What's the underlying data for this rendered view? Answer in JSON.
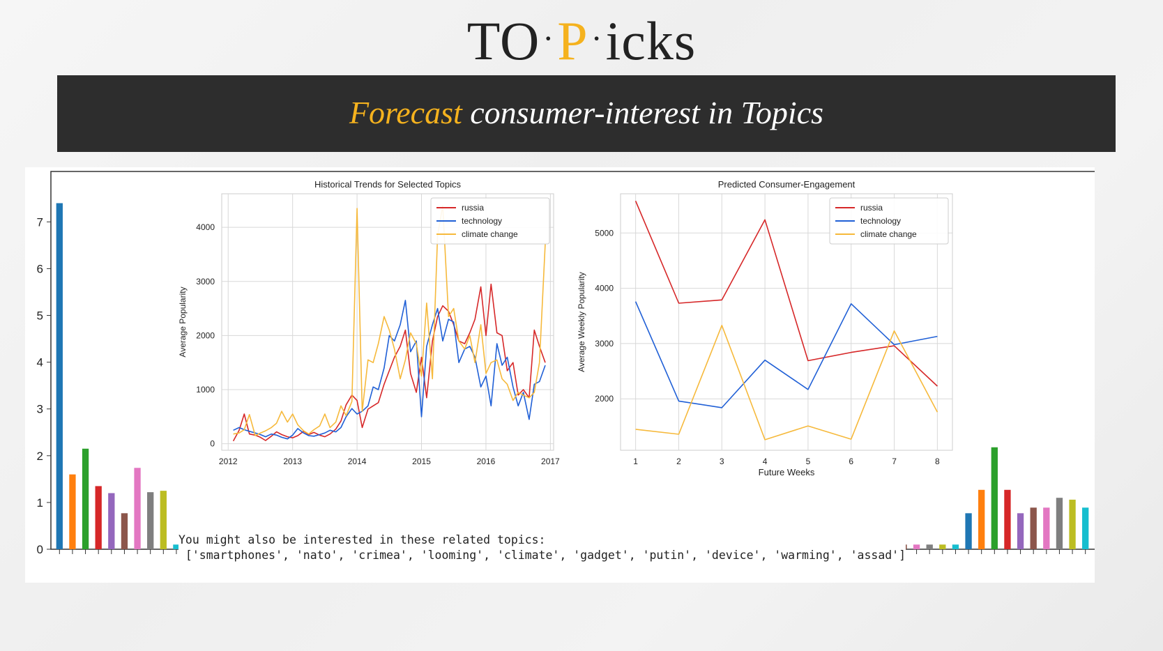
{
  "header": {
    "logo_part1": "TO",
    "logo_dot": "·",
    "logo_accent": "P",
    "logo_part2": "icks",
    "banner_accent": "Forecast",
    "banner_rest": " consumer-interest in Topics"
  },
  "related": {
    "line1": "You might also be interested in these related topics:",
    "line2": " ['smartphones', 'nato', 'crimea', 'looming', 'climate', 'gadget', 'putin', 'device', 'warming', 'assad']"
  },
  "colors": {
    "russia": "#d62728",
    "technology": "#1f5fd6",
    "climate_change": "#f6b93b",
    "tab10": [
      "#1f77b4",
      "#ff7f0e",
      "#2ca02c",
      "#d62728",
      "#9467bd",
      "#8c564b",
      "#e377c2",
      "#7f7f7f",
      "#bcbd22",
      "#17becf"
    ]
  },
  "chart_data": [
    {
      "type": "bar",
      "title": "",
      "ylim": [
        0,
        7.75
      ],
      "yticks": [
        0,
        1,
        2,
        3,
        4,
        5,
        6,
        7
      ],
      "values": [
        7.4,
        1.6,
        2.15,
        1.35,
        1.2,
        0.77,
        1.74,
        1.22,
        1.25,
        0.1,
        0.1,
        0.1,
        0.1,
        0.1,
        0.1,
        0.1,
        0.1,
        0.1,
        0.1,
        0.1,
        0.1,
        0.1,
        0.1,
        0.1,
        0.1,
        0.1,
        0.1,
        0.1,
        0.1,
        0.1,
        0.1,
        0.1,
        0.1,
        0.1,
        0.1,
        0.1,
        0.1,
        0.1,
        0.1,
        0.1,
        0.1,
        0.1,
        0.1,
        0.1,
        0.1,
        0.1,
        0.1,
        0.1,
        0.1,
        0.1,
        0.1,
        0.1,
        0.1,
        0.1,
        0.1,
        0.1,
        0.1,
        0.1,
        0.1,
        0.1,
        0.1,
        0.1,
        0.1,
        0.1,
        0.1,
        0.1,
        0.1,
        0.1,
        0.1,
        0.1,
        0.77,
        1.27,
        2.18,
        1.27,
        0.77,
        0.89,
        0.89,
        1.1,
        1.06,
        0.89
      ]
    },
    {
      "type": "line",
      "title": "Historical Trends for Selected Topics",
      "xlabel": "",
      "ylabel": "Average Popularity",
      "xlim": [
        2011.9,
        2017.05
      ],
      "ylim": [
        -120,
        4620
      ],
      "xticks": [
        2012,
        2013,
        2014,
        2015,
        2016,
        2017
      ],
      "yticks": [
        0,
        1000,
        2000,
        3000,
        4000
      ],
      "legend_position": "top-right",
      "grid": true,
      "series": [
        {
          "name": "russia",
          "color_key": "russia",
          "x": [
            2012.08,
            2012.17,
            2012.25,
            2012.33,
            2012.42,
            2012.5,
            2012.58,
            2012.67,
            2012.75,
            2012.83,
            2012.92,
            2013.0,
            2013.08,
            2013.17,
            2013.25,
            2013.33,
            2013.42,
            2013.5,
            2013.58,
            2013.67,
            2013.75,
            2013.83,
            2013.92,
            2014.0,
            2014.08,
            2014.17,
            2014.25,
            2014.33,
            2014.42,
            2014.5,
            2014.58,
            2014.67,
            2014.75,
            2014.83,
            2014.92,
            2015.0,
            2015.08,
            2015.17,
            2015.25,
            2015.33,
            2015.42,
            2015.5,
            2015.58,
            2015.67,
            2015.75,
            2015.83,
            2015.92,
            2016.0,
            2016.08,
            2016.17,
            2016.25,
            2016.33,
            2016.42,
            2016.5,
            2016.58,
            2016.67,
            2016.75,
            2016.83,
            2016.92
          ],
          "y": [
            50,
            250,
            550,
            180,
            160,
            120,
            60,
            140,
            220,
            170,
            130,
            110,
            150,
            230,
            170,
            210,
            160,
            130,
            180,
            270,
            420,
            720,
            900,
            800,
            300,
            640,
            700,
            760,
            1100,
            1350,
            1600,
            1800,
            2100,
            1300,
            950,
            1600,
            850,
            1900,
            2350,
            2550,
            2450,
            2200,
            1900,
            1850,
            2050,
            2300,
            2900,
            2000,
            2950,
            2050,
            2000,
            1350,
            1500,
            900,
            1000,
            850,
            2100,
            1800,
            1500
          ]
        },
        {
          "name": "technology",
          "color_key": "technology",
          "x": [
            2012.08,
            2012.17,
            2012.25,
            2012.33,
            2012.42,
            2012.5,
            2012.58,
            2012.67,
            2012.75,
            2012.83,
            2012.92,
            2013.0,
            2013.08,
            2013.17,
            2013.25,
            2013.33,
            2013.42,
            2013.5,
            2013.58,
            2013.67,
            2013.75,
            2013.83,
            2013.92,
            2014.0,
            2014.08,
            2014.17,
            2014.25,
            2014.33,
            2014.42,
            2014.5,
            2014.58,
            2014.67,
            2014.75,
            2014.83,
            2014.92,
            2015.0,
            2015.08,
            2015.17,
            2015.25,
            2015.33,
            2015.42,
            2015.5,
            2015.58,
            2015.67,
            2015.75,
            2015.83,
            2015.92,
            2016.0,
            2016.08,
            2016.17,
            2016.25,
            2016.33,
            2016.42,
            2016.5,
            2016.58,
            2016.67,
            2016.75,
            2016.83,
            2016.92
          ],
          "y": [
            250,
            300,
            260,
            230,
            200,
            170,
            130,
            180,
            160,
            120,
            90,
            160,
            280,
            200,
            150,
            140,
            170,
            200,
            250,
            220,
            300,
            500,
            650,
            550,
            600,
            700,
            1050,
            1000,
            1400,
            2000,
            1900,
            2200,
            2650,
            1700,
            1900,
            500,
            1800,
            2200,
            2500,
            1900,
            2300,
            2250,
            1500,
            1750,
            1800,
            1600,
            1050,
            1250,
            700,
            1850,
            1450,
            1600,
            1050,
            700,
            950,
            450,
            1100,
            1150,
            1450
          ]
        },
        {
          "name": "climate change",
          "color_key": "climate_change",
          "x": [
            2012.08,
            2012.17,
            2012.25,
            2012.33,
            2012.42,
            2012.5,
            2012.58,
            2012.67,
            2012.75,
            2012.83,
            2012.92,
            2013.0,
            2013.08,
            2013.17,
            2013.25,
            2013.33,
            2013.42,
            2013.5,
            2013.58,
            2013.67,
            2013.75,
            2013.83,
            2013.92,
            2014.0,
            2014.08,
            2014.17,
            2014.25,
            2014.33,
            2014.42,
            2014.5,
            2014.58,
            2014.67,
            2014.75,
            2014.83,
            2014.92,
            2015.0,
            2015.08,
            2015.17,
            2015.25,
            2015.33,
            2015.42,
            2015.5,
            2015.58,
            2015.67,
            2015.75,
            2015.83,
            2015.92,
            2016.0,
            2016.08,
            2016.17,
            2016.25,
            2016.33,
            2016.42,
            2016.5,
            2016.58,
            2016.67,
            2016.75,
            2016.83,
            2016.92
          ],
          "y": [
            180,
            200,
            260,
            540,
            150,
            200,
            240,
            300,
            380,
            600,
            400,
            550,
            350,
            240,
            180,
            260,
            330,
            550,
            300,
            400,
            700,
            520,
            780,
            4350,
            600,
            1550,
            1500,
            1850,
            2350,
            2100,
            1750,
            1200,
            1550,
            2050,
            1850,
            1250,
            2600,
            1200,
            3850,
            4400,
            2350,
            2500,
            1900,
            1750,
            2000,
            1500,
            2200,
            1300,
            1500,
            1550,
            1200,
            1100,
            800,
            950,
            900,
            850,
            950,
            1500,
            3700
          ]
        }
      ]
    },
    {
      "type": "line",
      "title": "Predicted Consumer-Engagement",
      "xlabel": "Future Weeks",
      "ylabel": "Average Weekly Popularity",
      "xlim": [
        0.65,
        8.35
      ],
      "ylim": [
        1070,
        5710
      ],
      "xticks": [
        1,
        2,
        3,
        4,
        5,
        6,
        7,
        8
      ],
      "yticks": [
        2000,
        3000,
        4000,
        5000
      ],
      "legend_position": "top-right",
      "grid": true,
      "series": [
        {
          "name": "russia",
          "color_key": "russia",
          "x": [
            1,
            2,
            3,
            4,
            5,
            6,
            7,
            8
          ],
          "y": [
            5580,
            3730,
            3790,
            5240,
            2690,
            2840,
            2960,
            2230
          ]
        },
        {
          "name": "technology",
          "color_key": "technology",
          "x": [
            1,
            2,
            3,
            4,
            5,
            6,
            7,
            8
          ],
          "y": [
            3760,
            1960,
            1840,
            2700,
            2170,
            3720,
            2980,
            3130
          ]
        },
        {
          "name": "climate change",
          "color_key": "climate_change",
          "x": [
            1,
            2,
            3,
            4,
            5,
            6,
            7,
            8
          ],
          "y": [
            1450,
            1360,
            3330,
            1260,
            1510,
            1270,
            3230,
            1760
          ]
        }
      ]
    }
  ]
}
